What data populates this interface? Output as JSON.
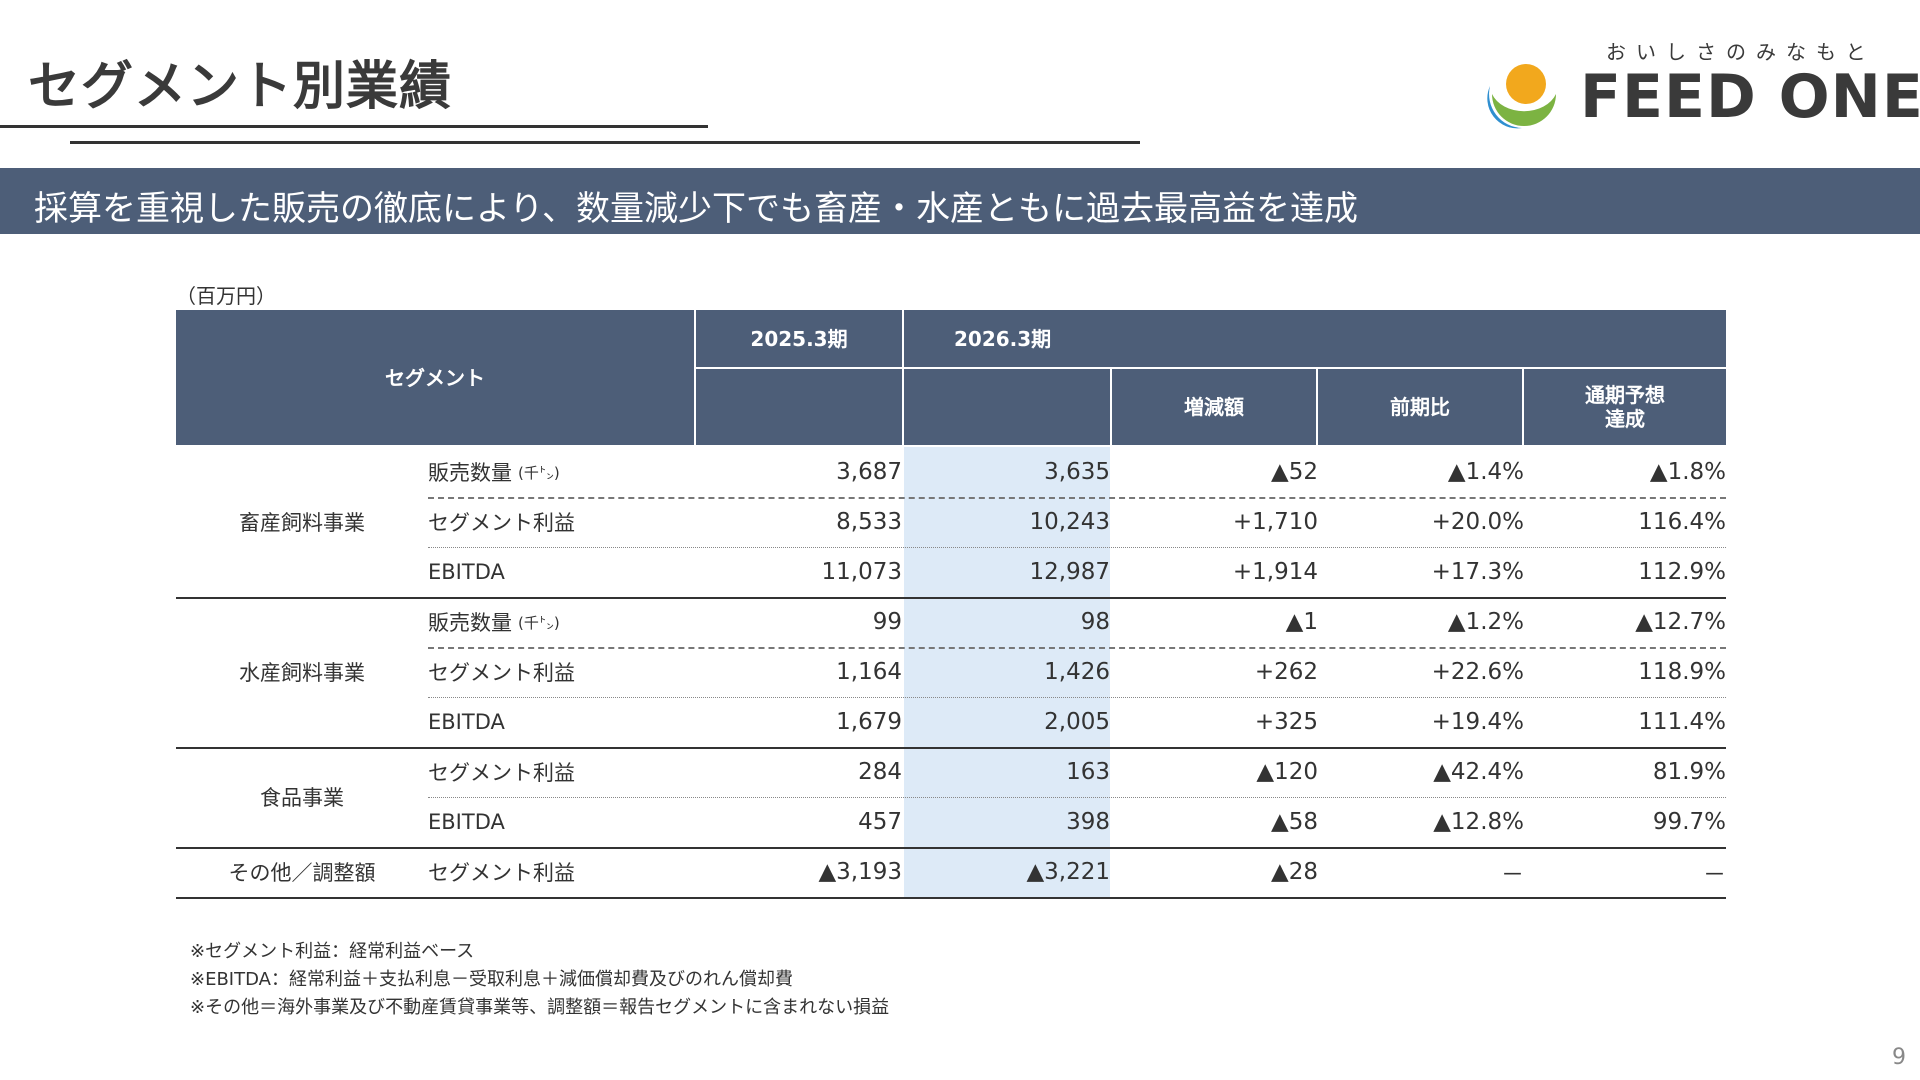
{
  "title": "セグメント別業績",
  "logo": {
    "tagline": "おいしさのみなもと",
    "wordmark": "FEED ONE",
    "colors": {
      "orange": "#f2a81d",
      "green": "#7cb342",
      "blue": "#2f8fd0"
    }
  },
  "banner": "採算を重視した販売の徹底により、数量減少下でも畜産・水産ともに過去最高益を達成",
  "unit": "（百万円）",
  "headers": {
    "segment": "セグメント",
    "fy2025": "2025.3期",
    "fy2026": "2026.3期",
    "change": "増減額",
    "yoy": "前期比",
    "forecast": "通期予想\n達成"
  },
  "segments": {
    "livestock": "畜産飼料事業",
    "aqua": "水産飼料事業",
    "food": "食品事業",
    "other": "その他／調整額"
  },
  "rows": [
    {
      "item": "販売数量",
      "unit": "(千㌧)",
      "v2025": "3,687",
      "v2026": "3,635",
      "change": "▲52",
      "yoy": "▲1.4%",
      "forecast": "▲1.8%"
    },
    {
      "item": "セグメント利益",
      "unit": "",
      "v2025": "8,533",
      "v2026": "10,243",
      "change": "+1,710",
      "yoy": "+20.0%",
      "forecast": "116.4%"
    },
    {
      "item": "EBITDA",
      "unit": "",
      "v2025": "11,073",
      "v2026": "12,987",
      "change": "+1,914",
      "yoy": "+17.3%",
      "forecast": "112.9%"
    },
    {
      "item": "販売数量",
      "unit": "(千㌧)",
      "v2025": "99",
      "v2026": "98",
      "change": "▲1",
      "yoy": "▲1.2%",
      "forecast": "▲12.7%"
    },
    {
      "item": "セグメント利益",
      "unit": "",
      "v2025": "1,164",
      "v2026": "1,426",
      "change": "+262",
      "yoy": "+22.6%",
      "forecast": "118.9%"
    },
    {
      "item": "EBITDA",
      "unit": "",
      "v2025": "1,679",
      "v2026": "2,005",
      "change": "+325",
      "yoy": "+19.4%",
      "forecast": "111.4%"
    },
    {
      "item": "セグメント利益",
      "unit": "",
      "v2025": "284",
      "v2026": "163",
      "change": "▲120",
      "yoy": "▲42.4%",
      "forecast": "81.9%"
    },
    {
      "item": "EBITDA",
      "unit": "",
      "v2025": "457",
      "v2026": "398",
      "change": "▲58",
      "yoy": "▲12.8%",
      "forecast": "99.7%"
    },
    {
      "item": "セグメント利益",
      "unit": "",
      "v2025": "▲3,193",
      "v2026": "▲3,221",
      "change": "▲28",
      "yoy": "－",
      "forecast": "－"
    }
  ],
  "notes": [
    "※セグメント利益：経常利益ベース",
    "※EBITDA：経常利益＋支払利息－受取利息＋減価償却費及びのれん償却費",
    "※その他＝海外事業及び不動産賃貸事業等、調整額＝報告セグメントに含まれない損益"
  ],
  "page_number": "9"
}
